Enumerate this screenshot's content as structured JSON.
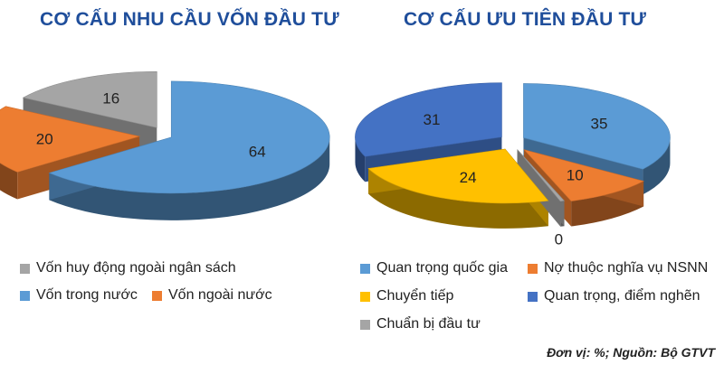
{
  "chart_data": [
    {
      "type": "pie",
      "title": "CƠ CẤU NHU CẦU VỐN ĐẦU TƯ",
      "slices": [
        {
          "label": "Vốn trong nước",
          "value": 64,
          "color": "#5b9bd5"
        },
        {
          "label": "Vốn ngoài nước",
          "value": 20,
          "color": "#ed7d31"
        },
        {
          "label": "Vốn huy động ngoài ngân sách",
          "value": 16,
          "color": "#a5a5a5"
        }
      ],
      "legend_rows": [
        [
          "Vốn huy động ngoài ngân sách"
        ],
        [
          "Vốn trong nước",
          "Vốn ngoài nước"
        ]
      ]
    },
    {
      "type": "pie",
      "title": "CƠ CẤU ƯU TIÊN ĐẦU TƯ",
      "slices": [
        {
          "label": "Quan trọng quốc gia",
          "value": 35,
          "color": "#5b9bd5"
        },
        {
          "label": "Nợ thuộc nghĩa vụ NSNN",
          "value": 10,
          "color": "#ed7d31"
        },
        {
          "label": "Chuẩn bị đầu tư",
          "value": 0,
          "color": "#a5a5a5"
        },
        {
          "label": "Chuyển tiếp",
          "value": 24,
          "color": "#ffc000"
        },
        {
          "label": "Quan trọng, điểm nghẽn",
          "value": 31,
          "color": "#4472c4"
        }
      ],
      "legend_rows": [
        [
          "Quan trọng quốc gia",
          "Nợ thuộc nghĩa vụ NSNN"
        ],
        [
          "Chuyển tiếp",
          "Quan trọng, điểm nghẽn"
        ],
        [
          "Chuẩn bị đầu tư"
        ]
      ]
    }
  ],
  "source": "Đơn vị: %; Nguồn: Bộ GTVT"
}
